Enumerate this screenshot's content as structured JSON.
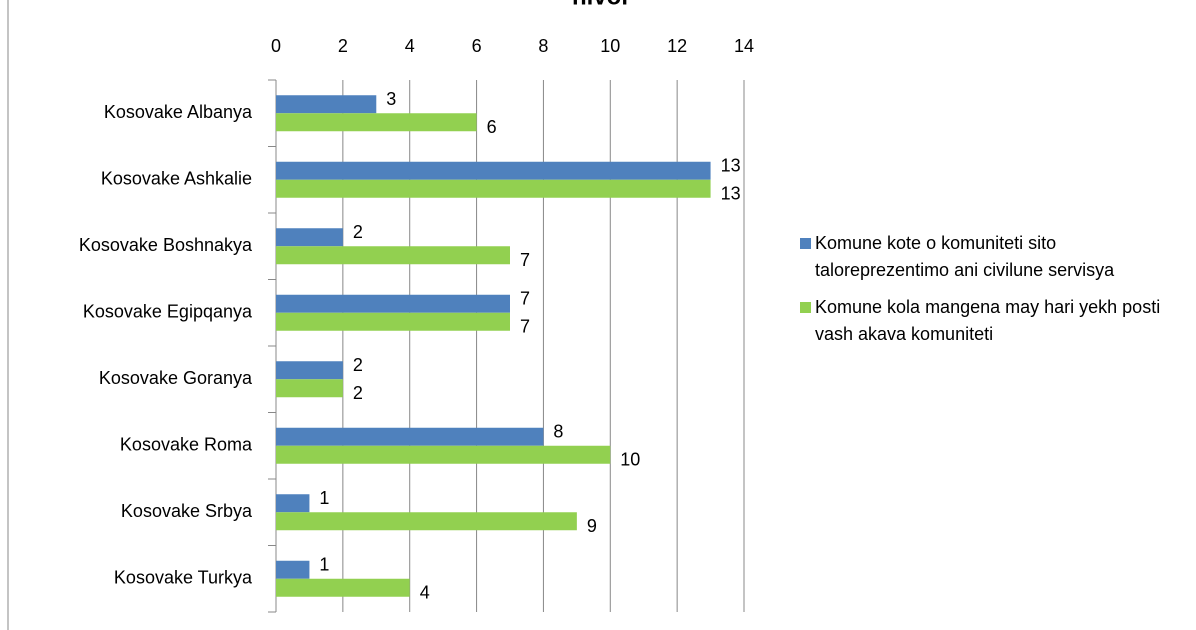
{
  "chart_data": {
    "type": "bar",
    "orientation": "horizontal",
    "title": "nivoi",
    "categories": [
      "Kosovake Albanya",
      "Kosovake Ashkalie",
      "Kosovake Boshnakya",
      "Kosovake Egipqanya",
      "Kosovake Goranya",
      "Kosovake Roma",
      "Kosovake Srbya",
      "Kosovake Turkya"
    ],
    "series": [
      {
        "name": "Komune kote o komuniteti sito taloreprezentimo ani civilune servisya",
        "color": "#4f81bd",
        "values": [
          3,
          13,
          2,
          7,
          2,
          8,
          1,
          1
        ]
      },
      {
        "name": "Komune kola mangena may hari yekh posti vash akava komuniteti",
        "color": "#92d050",
        "values": [
          6,
          13,
          7,
          7,
          2,
          10,
          9,
          4
        ]
      }
    ],
    "xlim": [
      0,
      14
    ],
    "xticks": [
      0,
      2,
      4,
      6,
      8,
      10,
      12,
      14
    ],
    "grid": true,
    "legend": "right"
  }
}
